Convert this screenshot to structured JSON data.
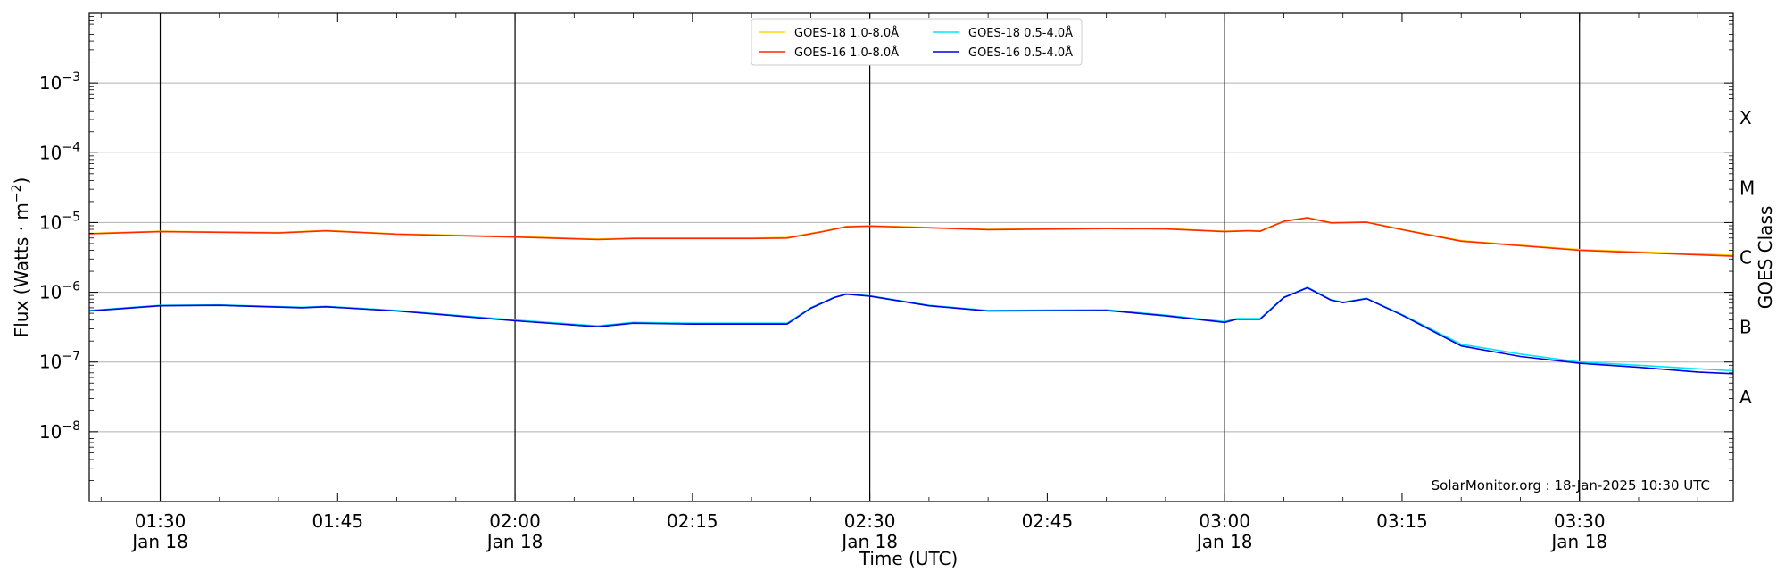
{
  "chart_data": {
    "type": "line",
    "xlabel": "Time (UTC)",
    "ylabel_main": "Flux (Watts · m",
    "ylabel_sup": "−2",
    "ylabel_close": ")",
    "y2label": "GOES Class",
    "y_scale": "log",
    "ylim": [
      1e-09,
      0.01
    ],
    "xlim": [
      "01:24",
      "03:43"
    ],
    "y_ticks": [
      {
        "value": 1e-08,
        "base": "10",
        "exp": "−8"
      },
      {
        "value": 1e-07,
        "base": "10",
        "exp": "−7"
      },
      {
        "value": 1e-06,
        "base": "10",
        "exp": "−6"
      },
      {
        "value": 1e-05,
        "base": "10",
        "exp": "−5"
      },
      {
        "value": 0.0001,
        "base": "10",
        "exp": "−4"
      },
      {
        "value": 0.001,
        "base": "10",
        "exp": "−3"
      }
    ],
    "x_ticks": [
      {
        "time": "01:30",
        "label": "01:30",
        "sub": "Jan 18",
        "major": true
      },
      {
        "time": "01:45",
        "label": "01:45",
        "sub": "",
        "major": false
      },
      {
        "time": "02:00",
        "label": "02:00",
        "sub": "Jan 18",
        "major": true
      },
      {
        "time": "02:15",
        "label": "02:15",
        "sub": "",
        "major": false
      },
      {
        "time": "02:30",
        "label": "02:30",
        "sub": "Jan 18",
        "major": true
      },
      {
        "time": "02:45",
        "label": "02:45",
        "sub": "",
        "major": false
      },
      {
        "time": "03:00",
        "label": "03:00",
        "sub": "Jan 18",
        "major": true
      },
      {
        "time": "03:15",
        "label": "03:15",
        "sub": "",
        "major": false
      },
      {
        "time": "03:30",
        "label": "03:30",
        "sub": "Jan 18",
        "major": true
      }
    ],
    "goes_classes": [
      {
        "label": "A",
        "value": 3.16e-08
      },
      {
        "label": "B",
        "value": 3.16e-07
      },
      {
        "label": "C",
        "value": 3.16e-06
      },
      {
        "label": "M",
        "value": 3.16e-05
      },
      {
        "label": "X",
        "value": 0.000316
      }
    ],
    "grid": true,
    "legend_position": "top-center",
    "credit": "SolarMonitor.org : 18-Jan-2025 10:30 UTC",
    "series": [
      {
        "name": "GOES-18 1.0-8.0Å",
        "color": "#ffd700",
        "x": [
          "01:24",
          "01:30",
          "01:40",
          "01:44",
          "01:50",
          "02:00",
          "02:07",
          "02:10",
          "02:20",
          "02:23",
          "02:26",
          "02:28",
          "02:30",
          "02:35",
          "02:40",
          "02:50",
          "02:55",
          "03:00",
          "03:02",
          "03:03",
          "03:05",
          "03:07",
          "03:09",
          "03:12",
          "03:15",
          "03:20",
          "03:30",
          "03:43"
        ],
        "values": [
          7e-06,
          7.5e-06,
          7.2e-06,
          7.7e-06,
          6.9e-06,
          6.3e-06,
          5.8e-06,
          6e-06,
          6e-06,
          6.1e-06,
          7.5e-06,
          8.8e-06,
          9e-06,
          8.5e-06,
          8e-06,
          8.3e-06,
          8.2e-06,
          7.5e-06,
          7.7e-06,
          7.6e-06,
          1.05e-05,
          1.18e-05,
          1e-05,
          1.02e-05,
          8e-06,
          5.5e-06,
          4.1e-06,
          3.4e-06
        ]
      },
      {
        "name": "GOES-18 0.5-4.0Å",
        "color": "#00e5ff",
        "x": [
          "01:24",
          "01:30",
          "01:35",
          "01:42",
          "01:44",
          "01:50",
          "02:00",
          "02:07",
          "02:10",
          "02:15",
          "02:23",
          "02:25",
          "02:27",
          "02:28",
          "02:30",
          "02:35",
          "02:40",
          "02:50",
          "02:55",
          "03:00",
          "03:01",
          "03:03",
          "03:05",
          "03:07",
          "03:09",
          "03:10",
          "03:12",
          "03:15",
          "03:20",
          "03:25",
          "03:30",
          "03:35",
          "03:40",
          "03:43"
        ],
        "values": [
          5.5e-07,
          6.5e-07,
          6.6e-07,
          6.1e-07,
          6.3e-07,
          5.5e-07,
          4e-07,
          3.3e-07,
          3.7e-07,
          3.6e-07,
          3.6e-07,
          6e-07,
          8.5e-07,
          9.5e-07,
          8.9e-07,
          6.5e-07,
          5.5e-07,
          5.6e-07,
          4.7e-07,
          3.8e-07,
          4.2e-07,
          4.2e-07,
          8.5e-07,
          1.18e-06,
          7.8e-07,
          7.2e-07,
          8.2e-07,
          4.8e-07,
          1.8e-07,
          1.3e-07,
          1e-07,
          9e-08,
          8e-08,
          7.5e-08
        ]
      },
      {
        "name": "GOES-16 1.0-8.0Å",
        "color": "#ff2a00",
        "x": [
          "01:24",
          "01:30",
          "01:40",
          "01:44",
          "01:50",
          "02:00",
          "02:07",
          "02:10",
          "02:20",
          "02:23",
          "02:26",
          "02:28",
          "02:30",
          "02:35",
          "02:40",
          "02:50",
          "02:55",
          "03:00",
          "03:02",
          "03:03",
          "03:05",
          "03:07",
          "03:09",
          "03:12",
          "03:15",
          "03:20",
          "03:30",
          "03:43"
        ],
        "values": [
          6.9e-06,
          7.4e-06,
          7.1e-06,
          7.6e-06,
          6.8e-06,
          6.2e-06,
          5.7e-06,
          5.9e-06,
          5.9e-06,
          6e-06,
          7.4e-06,
          8.7e-06,
          8.9e-06,
          8.4e-06,
          7.9e-06,
          8.2e-06,
          8.1e-06,
          7.4e-06,
          7.6e-06,
          7.5e-06,
          1.04e-05,
          1.17e-05,
          9.9e-06,
          1.01e-05,
          7.9e-06,
          5.4e-06,
          4e-06,
          3.3e-06
        ]
      },
      {
        "name": "GOES-16 0.5-4.0Å",
        "color": "#0000e0",
        "x": [
          "01:24",
          "01:30",
          "01:35",
          "01:42",
          "01:44",
          "01:50",
          "02:00",
          "02:07",
          "02:10",
          "02:15",
          "02:23",
          "02:25",
          "02:27",
          "02:28",
          "02:30",
          "02:35",
          "02:40",
          "02:50",
          "02:55",
          "03:00",
          "03:01",
          "03:03",
          "03:05",
          "03:07",
          "03:09",
          "03:10",
          "03:12",
          "03:15",
          "03:20",
          "03:25",
          "03:30",
          "03:35",
          "03:40",
          "03:43"
        ],
        "values": [
          5.4e-07,
          6.4e-07,
          6.5e-07,
          6e-07,
          6.2e-07,
          5.4e-07,
          3.9e-07,
          3.2e-07,
          3.6e-07,
          3.5e-07,
          3.5e-07,
          5.9e-07,
          8.4e-07,
          9.4e-07,
          8.8e-07,
          6.4e-07,
          5.4e-07,
          5.5e-07,
          4.6e-07,
          3.7e-07,
          4.1e-07,
          4.1e-07,
          8.4e-07,
          1.16e-06,
          7.7e-07,
          7.1e-07,
          8.1e-07,
          4.7e-07,
          1.7e-07,
          1.2e-07,
          9.6e-08,
          8.4e-08,
          7.2e-08,
          6.8e-08
        ]
      }
    ],
    "legend_order": [
      0,
      1,
      2,
      3
    ]
  }
}
